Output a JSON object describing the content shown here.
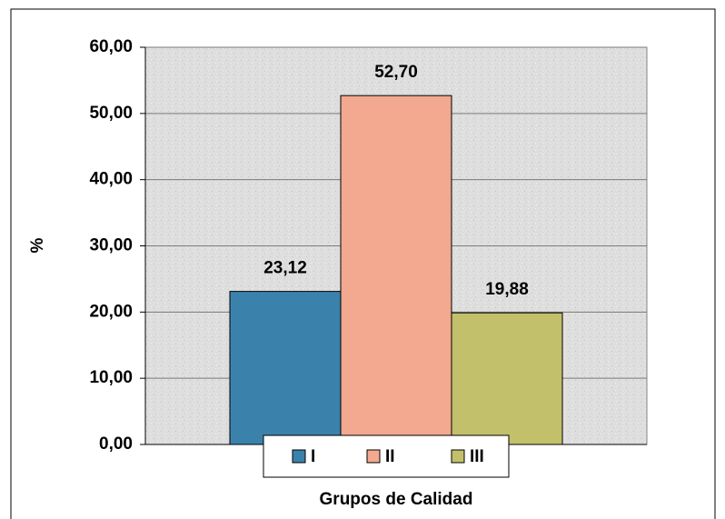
{
  "chart_data": {
    "type": "bar",
    "y_label": "%",
    "x_label": "Grupos de Calidad",
    "categories": [
      null
    ],
    "series": [
      {
        "name": "I",
        "color": "#3a82ab",
        "values": [
          23.12
        ],
        "value_labels": [
          "23,12"
        ]
      },
      {
        "name": "II",
        "color": "#f2a98f",
        "values": [
          52.7
        ],
        "value_labels": [
          "52,70"
        ]
      },
      {
        "name": "III",
        "color": "#c3c06b",
        "values": [
          19.88
        ],
        "value_labels": [
          "19,88"
        ]
      }
    ],
    "ylim": [
      0,
      60
    ],
    "yticks": [
      {
        "value": 0,
        "label": "0,00"
      },
      {
        "value": 10,
        "label": "10,00"
      },
      {
        "value": 20,
        "label": "20,00"
      },
      {
        "value": 30,
        "label": "30,00"
      },
      {
        "value": 40,
        "label": "40,00"
      },
      {
        "value": 50,
        "label": "50,00"
      },
      {
        "value": 60,
        "label": "60,00"
      }
    ],
    "grid": true,
    "legend": "bottom"
  }
}
